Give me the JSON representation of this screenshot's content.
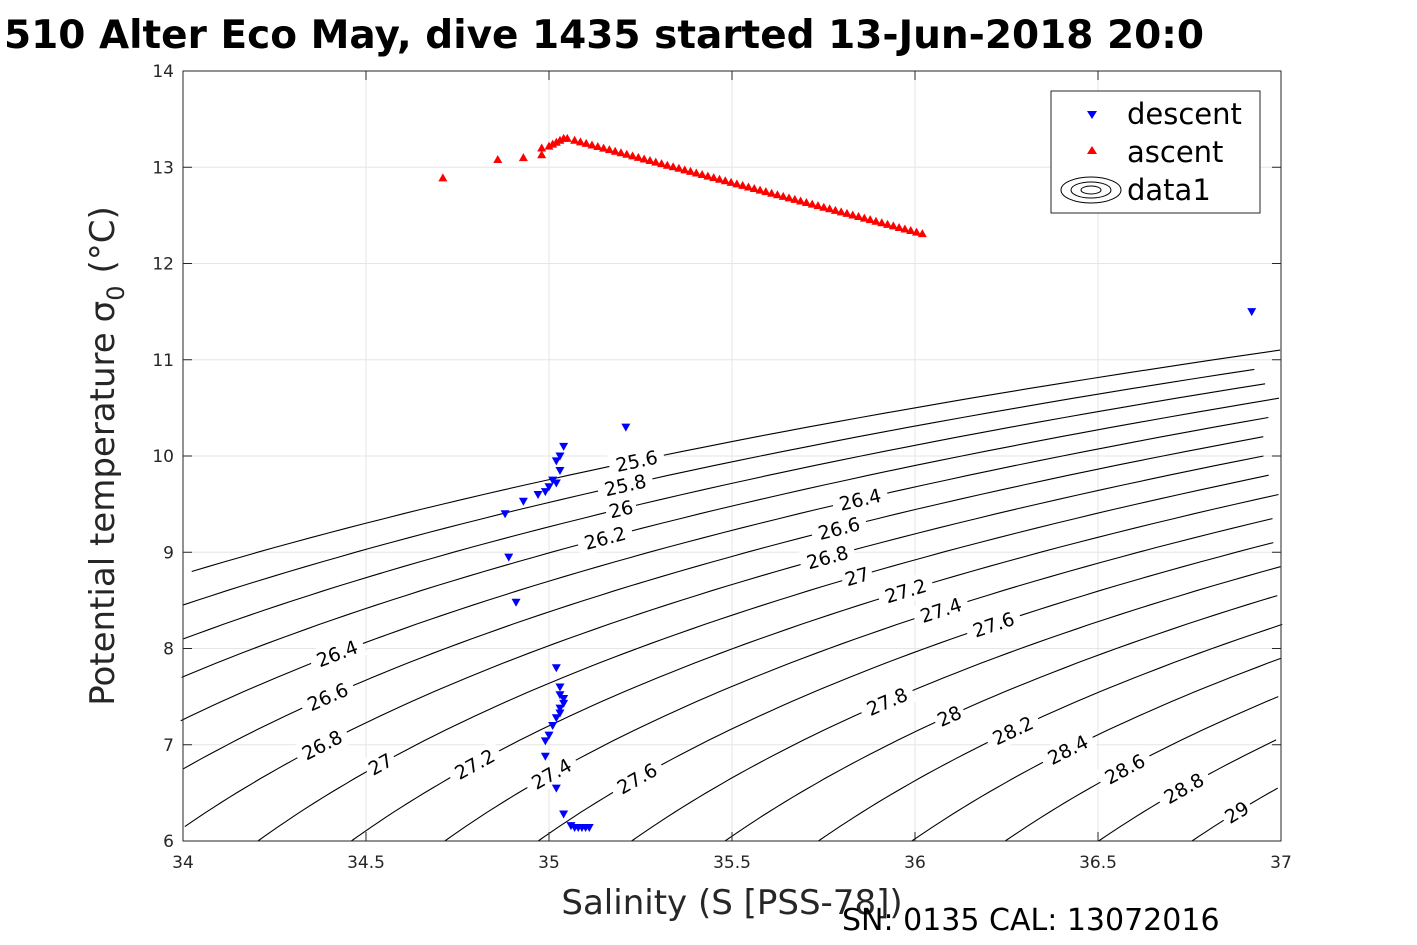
{
  "chart_data": {
    "type": "scatter",
    "title": "510 Alter Eco May, dive 1435 started 13-Jun-2018 20:0",
    "xlabel": "Salinity (S [PSS-78])",
    "ylabel": "Potential temperature",
    "ylabel_symbol": "σ",
    "ylabel_subscript": "0",
    "ylabel_unit": "(°C)",
    "xlim": [
      34,
      37
    ],
    "ylim": [
      6,
      14
    ],
    "x_ticks": [
      34,
      34.5,
      35,
      35.5,
      36,
      36.5,
      37
    ],
    "x_tick_labels": [
      "34",
      "34.5",
      "35",
      "35.5",
      "36",
      "36.5",
      "37"
    ],
    "y_ticks": [
      6,
      7,
      8,
      9,
      10,
      11,
      12,
      13,
      14
    ],
    "y_tick_labels": [
      "6",
      "7",
      "8",
      "9",
      "10",
      "11",
      "12",
      "13",
      "14"
    ],
    "grid": true,
    "legend_placement": "top-right",
    "series": [
      {
        "name": "descent",
        "marker": "triangle-down",
        "color": "#0000ff",
        "points": [
          [
            36.92,
            11.5
          ],
          [
            35.21,
            10.3
          ],
          [
            35.04,
            10.1
          ],
          [
            35.03,
            10.0
          ],
          [
            35.02,
            9.95
          ],
          [
            35.03,
            9.85
          ],
          [
            35.01,
            9.75
          ],
          [
            35.02,
            9.72
          ],
          [
            35.0,
            9.68
          ],
          [
            34.99,
            9.63
          ],
          [
            34.97,
            9.6
          ],
          [
            34.93,
            9.53
          ],
          [
            34.88,
            9.4
          ],
          [
            34.89,
            8.95
          ],
          [
            34.91,
            8.48
          ],
          [
            35.02,
            7.8
          ],
          [
            35.03,
            7.6
          ],
          [
            35.03,
            7.52
          ],
          [
            35.04,
            7.48
          ],
          [
            35.04,
            7.43
          ],
          [
            35.03,
            7.38
          ],
          [
            35.03,
            7.33
          ],
          [
            35.02,
            7.28
          ],
          [
            35.01,
            7.2
          ],
          [
            35.0,
            7.1
          ],
          [
            34.99,
            7.04
          ],
          [
            34.99,
            6.88
          ],
          [
            35.02,
            6.55
          ],
          [
            35.04,
            6.28
          ],
          [
            35.06,
            6.16
          ],
          [
            35.07,
            6.14
          ],
          [
            35.08,
            6.14
          ],
          [
            35.09,
            6.14
          ],
          [
            35.1,
            6.14
          ],
          [
            35.11,
            6.14
          ]
        ]
      },
      {
        "name": "ascent",
        "marker": "triangle-up",
        "color": "#ff0000",
        "points": [
          [
            34.71,
            12.89
          ],
          [
            34.86,
            13.08
          ],
          [
            34.93,
            13.1
          ],
          [
            34.98,
            13.13
          ],
          [
            34.98,
            13.2
          ],
          [
            35.0,
            13.22
          ],
          [
            35.01,
            13.24
          ],
          [
            35.02,
            13.26
          ],
          [
            35.03,
            13.28
          ],
          [
            35.04,
            13.3
          ],
          [
            35.05,
            13.3
          ],
          [
            35.07,
            13.28
          ],
          [
            36.02,
            12.31
          ]
        ]
      }
    ],
    "legend_entries": [
      "descent",
      "ascent",
      "data1"
    ],
    "contour_labels": [
      "25.6",
      "25.8",
      "26",
      "26.2",
      "26.4",
      "26.6",
      "26.8",
      "27",
      "27.2",
      "27.4",
      "27.6",
      "27.8",
      "28",
      "28.2",
      "28.4",
      "28.6",
      "28.8",
      "29"
    ],
    "footer": "SN: 0135  CAL: 13072016"
  }
}
